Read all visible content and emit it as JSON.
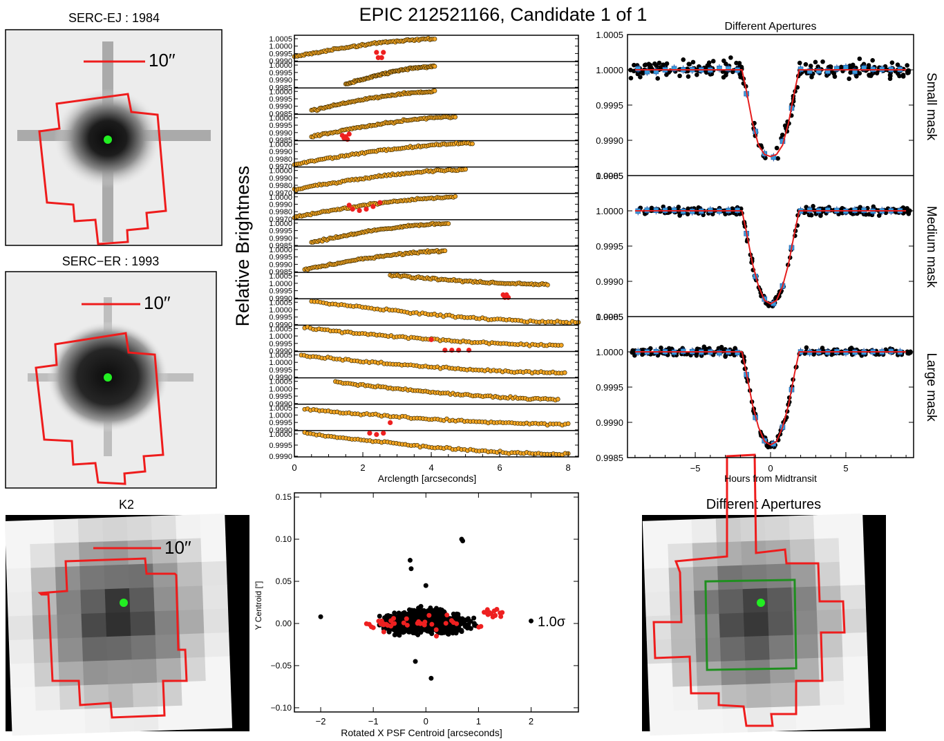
{
  "title": "EPIC 212521166, Candidate 1 of 1",
  "images": [
    {
      "title": "SERC-EJ : 1984",
      "scale_label": "10′′"
    },
    {
      "title": "SERC−ER : 1993",
      "scale_label": "10′′"
    },
    {
      "title": "K2",
      "scale_label": "10′′"
    },
    {
      "title": "Different Apertures"
    }
  ],
  "colors": {
    "aperture": "#ee1c1c",
    "star": "#22ee22",
    "small_aperture": "#1f8f1f",
    "orange": "#f5a623",
    "flux_red": "#ee2020",
    "bin_blue": "#3a9ad9",
    "model_red": "#e61e1e"
  },
  "brightness_panel": {
    "ylabel": "Relative Brightness",
    "xlabel": "Arclength [arcseconds]",
    "xticks": [
      "0",
      "2",
      "4",
      "6",
      "8"
    ],
    "xlim": [
      0,
      8.3
    ],
    "ytick_labels": [
      [
        "1.0005",
        "1.0000",
        "0.9995",
        "0.9990"
      ],
      [
        "1.0000",
        "0.9995",
        "0.9990",
        "0.9985"
      ],
      [
        "1.0000",
        "0.9995",
        "0.9990",
        "0.9985"
      ],
      [
        "1.0000",
        "0.9995",
        "0.9990",
        "0.9985"
      ],
      [
        "1.0000",
        "0.9990",
        "0.9980",
        "0.9970"
      ],
      [
        "1.0000",
        "0.9990",
        "0.9980",
        "0.9970"
      ],
      [
        "1.0000",
        "0.9990",
        "0.9980",
        "0.9970"
      ],
      [
        "1.0000",
        "0.9995",
        "0.9990",
        "0.9985"
      ],
      [
        "1.0000",
        "0.9995",
        "0.9990",
        "0.9985"
      ],
      [
        "1.0005",
        "1.0000",
        "0.9995",
        "0.9990"
      ],
      [
        "1.0005",
        "1.0000",
        "0.9995",
        "0.9990"
      ],
      [
        "1.0005",
        "1.0000",
        "0.9995",
        "0.9990"
      ],
      [
        "1.0005",
        "1.0000",
        "0.9995",
        "0.9990"
      ],
      [
        "1.0005",
        "1.0000",
        "0.9995",
        "0.9990"
      ],
      [
        "1.0005",
        "1.0000",
        "0.9995",
        "0.9990"
      ],
      [
        "1.0000",
        "0.9995",
        "0.9990"
      ]
    ]
  },
  "centroid_panel": {
    "xlabel": "Rotated X PSF Centroid [arcseconds]",
    "ylabel": "Y Centroid [″]",
    "annotation": "1.0σ",
    "xticks": [
      "−2",
      "−1",
      "0",
      "1",
      "2"
    ],
    "yticks": [
      "0.15",
      "0.10",
      "0.05",
      "0.00",
      "−0.05",
      "−0.10"
    ]
  },
  "apertures_panel": {
    "title": "Different Apertures",
    "xlabel": "Hours from Midtransit",
    "xticks": [
      "−5",
      "0",
      "5"
    ],
    "yticks": [
      "1.0005",
      "1.0000",
      "0.9995",
      "0.9990",
      "0.9985"
    ],
    "masks": [
      {
        "label": "Small mask",
        "color": "#1f8f1f"
      },
      {
        "label": "Medium mask",
        "color": "#e61e1e"
      },
      {
        "label": "Large mask",
        "color": "#1a1a8a"
      }
    ]
  },
  "chart_data": [
    {
      "type": "line",
      "title": "Different Apertures",
      "xlabel": "Hours from Midtransit",
      "xlim": [
        -9.5,
        9.5
      ],
      "ylim": [
        0.9985,
        1.0005
      ],
      "series": [
        {
          "name": "Small mask",
          "x": [
            -9,
            -1.9,
            -1.6,
            -1.2,
            -0.8,
            -0.4,
            0,
            0.4,
            0.8,
            1.2,
            1.6,
            1.9,
            9
          ],
          "y": [
            1.0,
            1.0,
            0.9997,
            0.99925,
            0.99893,
            0.9988,
            0.99877,
            0.9988,
            0.99893,
            0.99925,
            0.9997,
            1.0,
            1.0
          ]
        },
        {
          "name": "Medium mask",
          "x": [
            -9,
            -1.9,
            -1.6,
            -1.2,
            -0.8,
            -0.4,
            0,
            0.4,
            0.8,
            1.2,
            1.6,
            1.9,
            9
          ],
          "y": [
            1.0,
            1.0,
            0.9997,
            0.99925,
            0.99893,
            0.99873,
            0.99868,
            0.99873,
            0.99893,
            0.99925,
            0.9997,
            1.0,
            1.0
          ]
        },
        {
          "name": "Large mask",
          "x": [
            -9,
            -1.9,
            -1.6,
            -1.2,
            -0.8,
            -0.4,
            0,
            0.4,
            0.8,
            1.2,
            1.6,
            1.9,
            9
          ],
          "y": [
            1.0,
            1.0,
            0.9997,
            0.99925,
            0.99893,
            0.99873,
            0.99868,
            0.99873,
            0.99893,
            0.99925,
            0.9997,
            1.0,
            1.0
          ]
        }
      ]
    },
    {
      "type": "scatter",
      "xlabel": "Rotated X PSF Centroid [arcseconds]",
      "ylabel": "Y Centroid [″]",
      "xlim": [
        -2.5,
        2.9
      ],
      "ylim": [
        -0.105,
        0.155
      ],
      "series": [
        {
          "name": "",
          "x": [
            0.7,
            0.68,
            -0.3,
            -0.28,
            0,
            -2.0,
            2.0,
            -0.2,
            0.1
          ],
          "y": [
            0.098,
            0.1,
            0.075,
            0.065,
            0.045,
            0.008,
            0.003,
            -0.045,
            -0.065
          ]
        },
        {
          "name": "",
          "x": [
            -1.0,
            -0.8,
            -0.6,
            -0.1,
            0.2,
            0.4,
            1.3,
            1.45
          ],
          "y": [
            -0.005,
            -0.01,
            0.0,
            0.0,
            -0.015,
            0.01,
            0.015,
            0.013
          ]
        }
      ]
    }
  ]
}
